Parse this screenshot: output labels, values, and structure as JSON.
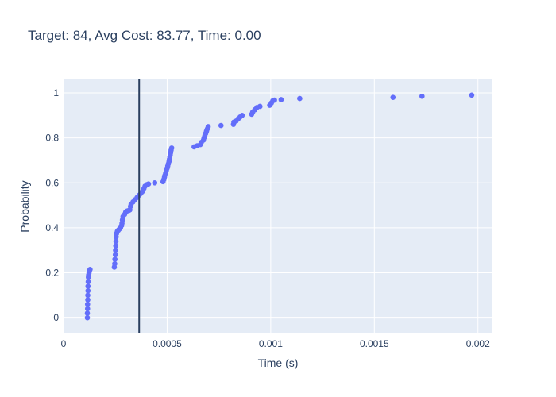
{
  "chart_data": {
    "type": "scatter",
    "title": "Target: 84, Avg Cost: 83.77, Time: 0.00",
    "xlabel": "Time (s)",
    "ylabel": "Probability",
    "xlim": [
      0,
      0.00207
    ],
    "ylim": [
      -0.07,
      1.06
    ],
    "x_ticks": [
      0,
      0.0005,
      0.001,
      0.0015,
      0.002
    ],
    "x_tick_labels": [
      "0",
      "0.0005",
      "0.001",
      "0.0015",
      "0.002"
    ],
    "y_ticks": [
      0,
      0.2,
      0.4,
      0.6,
      0.8,
      1
    ],
    "y_tick_labels": [
      "0",
      "0.2",
      "0.4",
      "0.6",
      "0.8",
      "1"
    ],
    "grid": true,
    "marker_color": "#636efa",
    "line_color": "#2a3f5f",
    "vline_x": 0.000365,
    "series": [
      {
        "name": "",
        "points": [
          [
            0.000115,
            0.0
          ],
          [
            0.000115,
            0.02
          ],
          [
            0.000116,
            0.04
          ],
          [
            0.000116,
            0.06
          ],
          [
            0.000117,
            0.08
          ],
          [
            0.000117,
            0.1
          ],
          [
            0.000118,
            0.12
          ],
          [
            0.000118,
            0.14
          ],
          [
            0.000119,
            0.16
          ],
          [
            0.00012,
            0.18
          ],
          [
            0.000121,
            0.19
          ],
          [
            0.000123,
            0.2
          ],
          [
            0.000125,
            0.21
          ],
          [
            0.000128,
            0.215
          ],
          [
            0.000245,
            0.225
          ],
          [
            0.000247,
            0.24
          ],
          [
            0.000248,
            0.26
          ],
          [
            0.00025,
            0.28
          ],
          [
            0.000251,
            0.3
          ],
          [
            0.000252,
            0.32
          ],
          [
            0.000253,
            0.34
          ],
          [
            0.000254,
            0.36
          ],
          [
            0.000256,
            0.375
          ],
          [
            0.00026,
            0.385
          ],
          [
            0.000265,
            0.39
          ],
          [
            0.00027,
            0.395
          ],
          [
            0.000275,
            0.4
          ],
          [
            0.00028,
            0.41
          ],
          [
            0.000282,
            0.42
          ],
          [
            0.000284,
            0.435
          ],
          [
            0.000287,
            0.45
          ],
          [
            0.000295,
            0.46
          ],
          [
            0.0003,
            0.47
          ],
          [
            0.000307,
            0.475
          ],
          [
            0.000315,
            0.477
          ],
          [
            0.00032,
            0.48
          ],
          [
            0.000323,
            0.495
          ],
          [
            0.000326,
            0.505
          ],
          [
            0.000335,
            0.515
          ],
          [
            0.000345,
            0.525
          ],
          [
            0.000355,
            0.535
          ],
          [
            0.000365,
            0.545
          ],
          [
            0.000373,
            0.553
          ],
          [
            0.000381,
            0.562
          ],
          [
            0.000388,
            0.575
          ],
          [
            0.000393,
            0.585
          ],
          [
            0.000402,
            0.592
          ],
          [
            0.00041,
            0.595
          ],
          [
            0.00044,
            0.6
          ],
          [
            0.00048,
            0.605
          ],
          [
            0.000484,
            0.615
          ],
          [
            0.000487,
            0.625
          ],
          [
            0.00049,
            0.635
          ],
          [
            0.000493,
            0.645
          ],
          [
            0.000496,
            0.655
          ],
          [
            0.0005,
            0.665
          ],
          [
            0.000503,
            0.675
          ],
          [
            0.000506,
            0.685
          ],
          [
            0.000509,
            0.695
          ],
          [
            0.000511,
            0.705
          ],
          [
            0.000513,
            0.715
          ],
          [
            0.000515,
            0.725
          ],
          [
            0.000517,
            0.735
          ],
          [
            0.000519,
            0.745
          ],
          [
            0.000522,
            0.755
          ],
          [
            0.00063,
            0.76
          ],
          [
            0.000645,
            0.765
          ],
          [
            0.00066,
            0.77
          ],
          [
            0.000665,
            0.78
          ],
          [
            0.000675,
            0.79
          ],
          [
            0.000678,
            0.8
          ],
          [
            0.000682,
            0.81
          ],
          [
            0.000686,
            0.82
          ],
          [
            0.00069,
            0.83
          ],
          [
            0.000694,
            0.84
          ],
          [
            0.000698,
            0.85
          ],
          [
            0.00076,
            0.855
          ],
          [
            0.00082,
            0.86
          ],
          [
            0.000822,
            0.87
          ],
          [
            0.000833,
            0.875
          ],
          [
            0.000843,
            0.885
          ],
          [
            0.000852,
            0.893
          ],
          [
            0.000862,
            0.9
          ],
          [
            0.000908,
            0.905
          ],
          [
            0.000913,
            0.915
          ],
          [
            0.000923,
            0.925
          ],
          [
            0.000933,
            0.935
          ],
          [
            0.000948,
            0.94
          ],
          [
            0.000995,
            0.945
          ],
          [
            0.001003,
            0.955
          ],
          [
            0.00101,
            0.965
          ],
          [
            0.001018,
            0.968
          ],
          [
            0.00105,
            0.97
          ],
          [
            0.00114,
            0.975
          ],
          [
            0.00159,
            0.98
          ],
          [
            0.00173,
            0.985
          ],
          [
            0.00197,
            0.99
          ]
        ]
      }
    ]
  }
}
